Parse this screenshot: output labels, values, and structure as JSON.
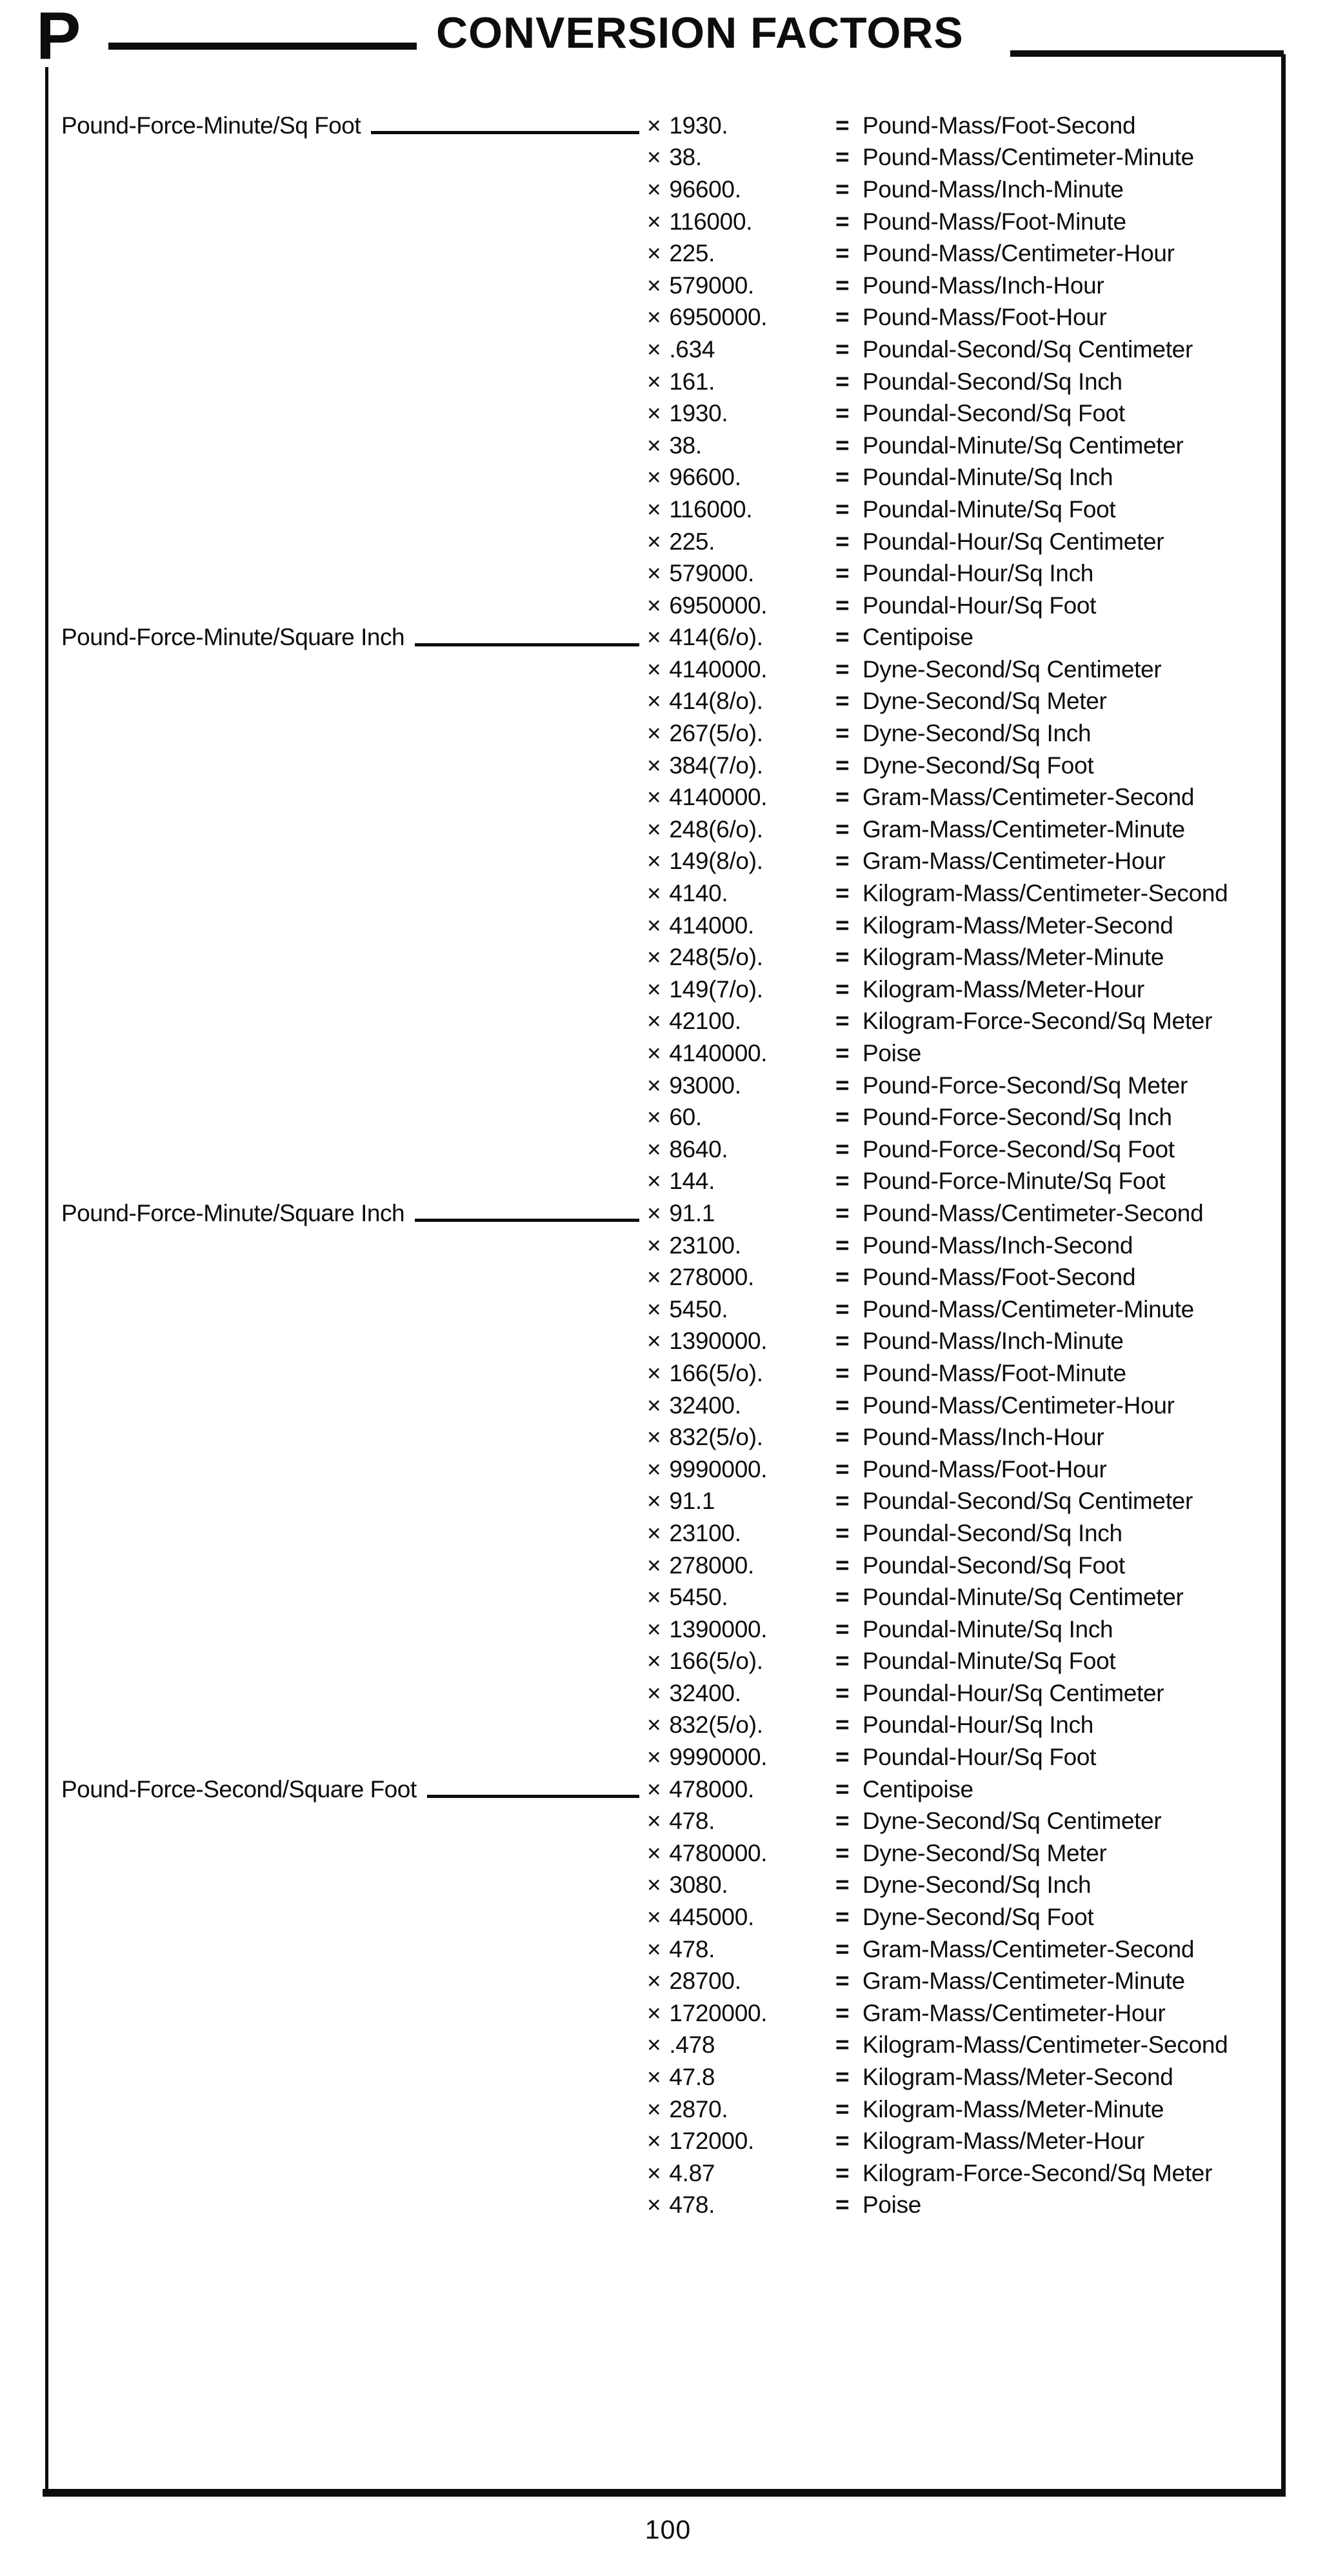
{
  "page": {
    "section_letter": "P",
    "title": "CONVERSION FACTORS",
    "page_number": "100",
    "multiply_sign": "×",
    "equals_sign": "="
  },
  "table": {
    "rows": [
      {
        "label": "Pound-Force-Minute/Sq Foot",
        "factor": "1930.",
        "result": "Pound-Mass/Foot-Second"
      },
      {
        "label": "",
        "factor": "38.",
        "result": "Pound-Mass/Centimeter-Minute"
      },
      {
        "label": "",
        "factor": "96600.",
        "result": "Pound-Mass/Inch-Minute"
      },
      {
        "label": "",
        "factor": "116000.",
        "result": "Pound-Mass/Foot-Minute"
      },
      {
        "label": "",
        "factor": "225.",
        "result": "Pound-Mass/Centimeter-Hour"
      },
      {
        "label": "",
        "factor": "579000.",
        "result": "Pound-Mass/Inch-Hour"
      },
      {
        "label": "",
        "factor": "6950000.",
        "result": "Pound-Mass/Foot-Hour"
      },
      {
        "label": "",
        "factor": ".634",
        "result": "Poundal-Second/Sq Centimeter"
      },
      {
        "label": "",
        "factor": "161.",
        "result": "Poundal-Second/Sq Inch"
      },
      {
        "label": "",
        "factor": "1930.",
        "result": "Poundal-Second/Sq Foot"
      },
      {
        "label": "",
        "factor": "38.",
        "result": "Poundal-Minute/Sq Centimeter"
      },
      {
        "label": "",
        "factor": "96600.",
        "result": "Poundal-Minute/Sq Inch"
      },
      {
        "label": "",
        "factor": "116000.",
        "result": "Poundal-Minute/Sq Foot"
      },
      {
        "label": "",
        "factor": "225.",
        "result": "Poundal-Hour/Sq Centimeter"
      },
      {
        "label": "",
        "factor": "579000.",
        "result": "Poundal-Hour/Sq Inch"
      },
      {
        "label": "",
        "factor": "6950000.",
        "result": "Poundal-Hour/Sq Foot"
      },
      {
        "label": "Pound-Force-Minute/Square Inch",
        "factor": "414(6/o).",
        "result": "Centipoise"
      },
      {
        "label": "",
        "factor": "4140000.",
        "result": "Dyne-Second/Sq Centimeter"
      },
      {
        "label": "",
        "factor": "414(8/o).",
        "result": "Dyne-Second/Sq Meter"
      },
      {
        "label": "",
        "factor": "267(5/o).",
        "result": "Dyne-Second/Sq Inch"
      },
      {
        "label": "",
        "factor": "384(7/o).",
        "result": "Dyne-Second/Sq Foot"
      },
      {
        "label": "",
        "factor": "4140000.",
        "result": "Gram-Mass/Centimeter-Second"
      },
      {
        "label": "",
        "factor": "248(6/o).",
        "result": "Gram-Mass/Centimeter-Minute"
      },
      {
        "label": "",
        "factor": "149(8/o).",
        "result": "Gram-Mass/Centimeter-Hour"
      },
      {
        "label": "",
        "factor": "4140.",
        "result": "Kilogram-Mass/Centimeter-Second"
      },
      {
        "label": "",
        "factor": "414000.",
        "result": "Kilogram-Mass/Meter-Second"
      },
      {
        "label": "",
        "factor": "248(5/o).",
        "result": "Kilogram-Mass/Meter-Minute"
      },
      {
        "label": "",
        "factor": "149(7/o).",
        "result": "Kilogram-Mass/Meter-Hour"
      },
      {
        "label": "",
        "factor": "42100.",
        "result": "Kilogram-Force-Second/Sq Meter"
      },
      {
        "label": "",
        "factor": "4140000.",
        "result": "Poise"
      },
      {
        "label": "",
        "factor": "93000.",
        "result": "Pound-Force-Second/Sq Meter"
      },
      {
        "label": "",
        "factor": "60.",
        "result": "Pound-Force-Second/Sq Inch"
      },
      {
        "label": "",
        "factor": "8640.",
        "result": "Pound-Force-Second/Sq Foot"
      },
      {
        "label": "",
        "factor": "144.",
        "result": "Pound-Force-Minute/Sq Foot"
      },
      {
        "label": "Pound-Force-Minute/Square Inch",
        "factor": "91.1",
        "result": "Pound-Mass/Centimeter-Second"
      },
      {
        "label": "",
        "factor": "23100.",
        "result": "Pound-Mass/Inch-Second"
      },
      {
        "label": "",
        "factor": "278000.",
        "result": "Pound-Mass/Foot-Second"
      },
      {
        "label": "",
        "factor": "5450.",
        "result": "Pound-Mass/Centimeter-Minute"
      },
      {
        "label": "",
        "factor": "1390000.",
        "result": "Pound-Mass/Inch-Minute"
      },
      {
        "label": "",
        "factor": "166(5/o).",
        "result": "Pound-Mass/Foot-Minute"
      },
      {
        "label": "",
        "factor": "32400.",
        "result": "Pound-Mass/Centimeter-Hour"
      },
      {
        "label": "",
        "factor": "832(5/o).",
        "result": "Pound-Mass/Inch-Hour"
      },
      {
        "label": "",
        "factor": "9990000.",
        "result": "Pound-Mass/Foot-Hour"
      },
      {
        "label": "",
        "factor": "91.1",
        "result": "Poundal-Second/Sq Centimeter"
      },
      {
        "label": "",
        "factor": "23100.",
        "result": "Poundal-Second/Sq Inch"
      },
      {
        "label": "",
        "factor": "278000.",
        "result": "Poundal-Second/Sq Foot"
      },
      {
        "label": "",
        "factor": "5450.",
        "result": "Poundal-Minute/Sq Centimeter"
      },
      {
        "label": "",
        "factor": "1390000.",
        "result": "Poundal-Minute/Sq Inch"
      },
      {
        "label": "",
        "factor": "166(5/o).",
        "result": "Poundal-Minute/Sq Foot"
      },
      {
        "label": "",
        "factor": "32400.",
        "result": "Poundal-Hour/Sq Centimeter"
      },
      {
        "label": "",
        "factor": "832(5/o).",
        "result": "Poundal-Hour/Sq Inch"
      },
      {
        "label": "",
        "factor": "9990000.",
        "result": "Poundal-Hour/Sq Foot"
      },
      {
        "label": "Pound-Force-Second/Square Foot",
        "factor": "478000.",
        "result": "Centipoise"
      },
      {
        "label": "",
        "factor": "478.",
        "result": "Dyne-Second/Sq Centimeter"
      },
      {
        "label": "",
        "factor": "4780000.",
        "result": "Dyne-Second/Sq Meter"
      },
      {
        "label": "",
        "factor": "3080.",
        "result": "Dyne-Second/Sq Inch"
      },
      {
        "label": "",
        "factor": "445000.",
        "result": "Dyne-Second/Sq Foot"
      },
      {
        "label": "",
        "factor": "478.",
        "result": "Gram-Mass/Centimeter-Second"
      },
      {
        "label": "",
        "factor": "28700.",
        "result": "Gram-Mass/Centimeter-Minute"
      },
      {
        "label": "",
        "factor": "1720000.",
        "result": "Gram-Mass/Centimeter-Hour"
      },
      {
        "label": "",
        "factor": ".478",
        "result": "Kilogram-Mass/Centimeter-Second"
      },
      {
        "label": "",
        "factor": "47.8",
        "result": "Kilogram-Mass/Meter-Second"
      },
      {
        "label": "",
        "factor": "2870.",
        "result": "Kilogram-Mass/Meter-Minute"
      },
      {
        "label": "",
        "factor": "172000.",
        "result": "Kilogram-Mass/Meter-Hour"
      },
      {
        "label": "",
        "factor": "4.87",
        "result": "Kilogram-Force-Second/Sq Meter"
      },
      {
        "label": "",
        "factor": "478.",
        "result": "Poise"
      }
    ]
  }
}
